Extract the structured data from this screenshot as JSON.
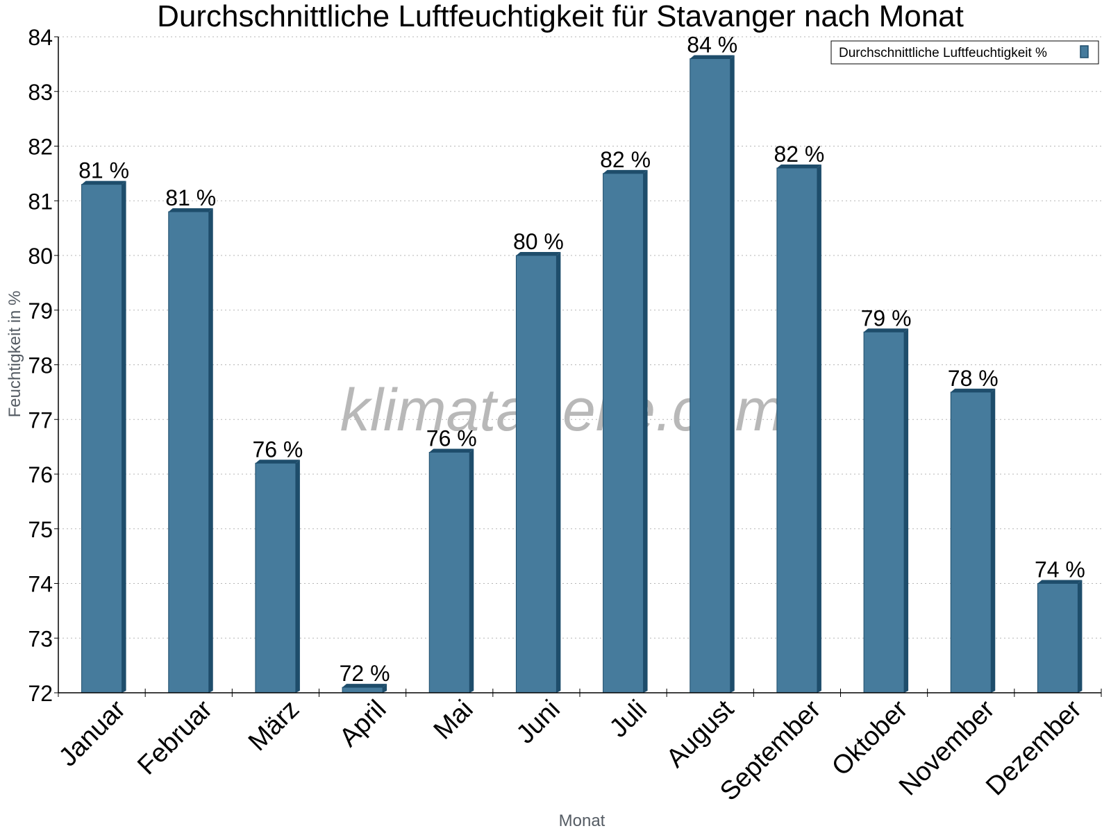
{
  "chart_data": {
    "type": "bar",
    "title": "Durchschnittliche Luftfeuchtigkeit für Stavanger nach Monat",
    "xlabel": "Monat",
    "ylabel": "Feuchtigkeit in %",
    "categories": [
      "Januar",
      "Februar",
      "März",
      "April",
      "Mai",
      "Juni",
      "Juli",
      "August",
      "September",
      "Oktober",
      "November",
      "Dezember"
    ],
    "series": [
      {
        "name": "Durchschnittliche Luftfeuchtigkeit %",
        "values": [
          81.3,
          80.8,
          76.2,
          72.1,
          76.4,
          80.0,
          81.5,
          83.6,
          81.6,
          78.6,
          77.5,
          74.0
        ],
        "labels": [
          "81 %",
          "81 %",
          "76 %",
          "72 %",
          "76 %",
          "80 %",
          "82 %",
          "84 %",
          "82 %",
          "79 %",
          "78 %",
          "74 %"
        ]
      }
    ],
    "ylim": [
      72,
      84
    ],
    "yticks": [
      "72",
      "73",
      "74",
      "75",
      "76",
      "77",
      "78",
      "79",
      "80",
      "81",
      "82",
      "83",
      "84"
    ],
    "grid": true,
    "legend_position": "top-right",
    "colors": {
      "bar": "#467b9c",
      "bar_edge": "#1e4d6b"
    },
    "watermark": "klimatabelle.com"
  }
}
